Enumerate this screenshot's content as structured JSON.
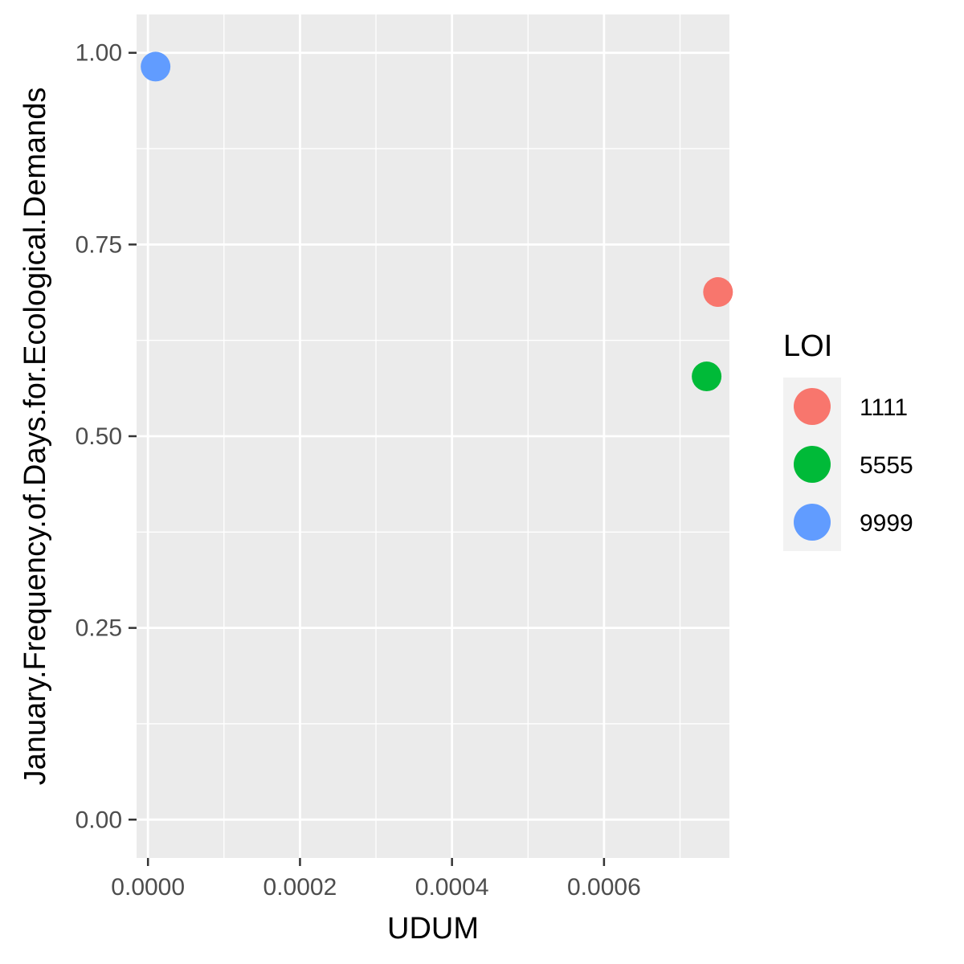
{
  "chart_data": {
    "type": "scatter",
    "xlabel": "UDUM",
    "ylabel": "January.Frequency.of.Days.for.Ecological.Demands",
    "xlim": [
      -1.5e-05,
      0.000765
    ],
    "ylim": [
      -0.05,
      1.05
    ],
    "x_ticks": [
      0.0,
      0.0002,
      0.0004,
      0.0006
    ],
    "x_tick_labels": [
      "0.0000",
      "0.0002",
      "0.0004",
      "0.0006"
    ],
    "x_minor_ticks": [
      0.0001,
      0.0003,
      0.0005,
      0.0007
    ],
    "y_ticks": [
      0.0,
      0.25,
      0.5,
      0.75,
      1.0
    ],
    "y_tick_labels": [
      "0.00",
      "0.25",
      "0.50",
      "0.75",
      "1.00"
    ],
    "y_minor_ticks": [
      0.125,
      0.375,
      0.625,
      0.875
    ],
    "grid": true,
    "legend": {
      "title": "LOI",
      "placement": "right",
      "entries": [
        {
          "label": "1111",
          "color": "#F8766D"
        },
        {
          "label": "5555",
          "color": "#00BA38"
        },
        {
          "label": "9999",
          "color": "#619CFF"
        }
      ]
    },
    "points": [
      {
        "group": "1111",
        "x": 0.00075,
        "y": 0.688,
        "color": "#F8766D"
      },
      {
        "group": "5555",
        "x": 0.000735,
        "y": 0.578,
        "color": "#00BA38"
      },
      {
        "group": "9999",
        "x": 1e-05,
        "y": 0.982,
        "color": "#619CFF"
      }
    ]
  }
}
